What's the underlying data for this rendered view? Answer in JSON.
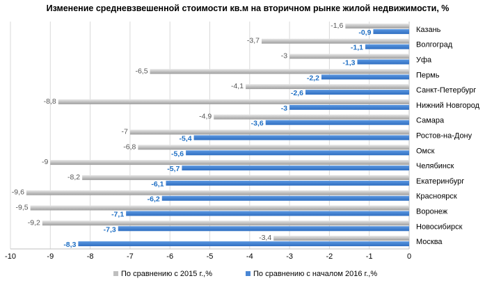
{
  "chart_data": {
    "type": "bar",
    "orientation": "horizontal",
    "title": "Изменение средневзвешенной стоимости  кв.м на вторичном рынке жилой недвижимости, %",
    "categories": [
      "Казань",
      "Волгоград",
      "Уфа",
      "Пермь",
      "Санкт-Петербург",
      "Нижний Новгород",
      "Самара",
      "Ростов-на-Дону",
      "Омск",
      "Челябинск",
      "Екатеринбург",
      "Красноярск",
      "Воронеж",
      "Новосибирск",
      "Москва"
    ],
    "series": [
      {
        "name": "По сравнению с 2015 г.,%",
        "color": "#bfbfbf",
        "values": [
          -1.6,
          -3.7,
          -3,
          -6.5,
          -4.1,
          -8.8,
          -4.9,
          -7,
          -6.8,
          -9,
          -8.2,
          -9.6,
          -9.5,
          -9.2,
          -3.4
        ],
        "labels": [
          "-1,6",
          "-3,7",
          "-3",
          "-6,5",
          "-4,1",
          "-8,8",
          "-4,9",
          "-7",
          "-6,8",
          "-9",
          "-8,2",
          "-9,6",
          "-9,5",
          "-9,2",
          "-3,4"
        ]
      },
      {
        "name": "По сравнению с началом 2016 г.,%",
        "color": "#4a86d4",
        "values": [
          -0.9,
          -1.1,
          -1.3,
          -2.2,
          -2.6,
          -3,
          -3.6,
          -5.4,
          -5.6,
          -5.7,
          -6.1,
          -6.2,
          -7.1,
          -7.3,
          -8.3
        ],
        "labels": [
          "-0,9",
          "-1,1",
          "-1,3",
          "-2,2",
          "-2,6",
          "-3",
          "-3,6",
          "-5,4",
          "-5,6",
          "-5,7",
          "-6,1",
          "-6,2",
          "-7,1",
          "-7,3",
          "-8,3"
        ]
      }
    ],
    "xlim": [
      -10,
      0
    ],
    "xticks": [
      "-10",
      "-9",
      "-8",
      "-7",
      "-6",
      "-5",
      "-4",
      "-3",
      "-2",
      "-1",
      "0"
    ],
    "grid": true,
    "legend_position": "bottom"
  }
}
